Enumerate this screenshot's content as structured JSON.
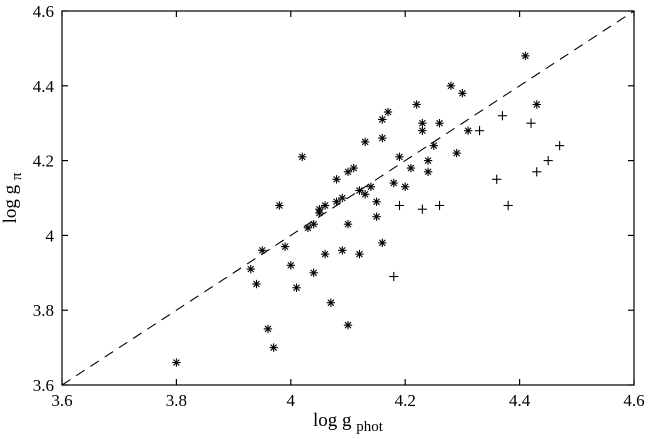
{
  "figure": {
    "background": "#ffffff"
  },
  "chart_data": {
    "type": "scatter",
    "title": "",
    "xlabel": "log g_phot",
    "ylabel": "log g_π",
    "xlabel_parts": {
      "prefix": "log g",
      "sub": "phot"
    },
    "ylabel_parts": {
      "prefix": "log g",
      "sub": "π"
    },
    "xlim": [
      3.6,
      4.6
    ],
    "ylim": [
      3.6,
      4.6
    ],
    "xticks": [
      3.6,
      3.8,
      4.0,
      4.2,
      4.4,
      4.6
    ],
    "xtick_labels": [
      "3.6",
      "3.8",
      "4",
      "4.2",
      "4.4",
      "4.6"
    ],
    "yticks": [
      3.6,
      3.8,
      4.0,
      4.2,
      4.4,
      4.6
    ],
    "ytick_labels": [
      "3.6",
      "3.8",
      "4",
      "4.2",
      "4.4",
      "4.6"
    ],
    "grid": false,
    "legend": null,
    "axis_color": "#000000",
    "marker_color": "#000000",
    "line_color": "#000000",
    "reference_line": {
      "type": "identity",
      "style": "dashed",
      "from": [
        3.6,
        3.6
      ],
      "to": [
        4.6,
        4.6
      ]
    },
    "series": [
      {
        "name": "asterisk-sample",
        "marker": "asterisk",
        "points": [
          [
            3.8,
            3.66
          ],
          [
            3.93,
            3.91
          ],
          [
            3.94,
            3.87
          ],
          [
            3.95,
            3.96
          ],
          [
            3.96,
            3.75
          ],
          [
            3.97,
            3.7
          ],
          [
            3.98,
            4.08
          ],
          [
            3.99,
            3.97
          ],
          [
            4.0,
            3.92
          ],
          [
            4.01,
            3.86
          ],
          [
            4.02,
            4.21
          ],
          [
            4.03,
            4.02
          ],
          [
            4.04,
            4.03
          ],
          [
            4.04,
            3.9
          ],
          [
            4.05,
            4.06
          ],
          [
            4.05,
            4.07
          ],
          [
            4.06,
            4.08
          ],
          [
            4.06,
            3.95
          ],
          [
            4.07,
            3.82
          ],
          [
            4.08,
            4.09
          ],
          [
            4.08,
            4.15
          ],
          [
            4.09,
            4.1
          ],
          [
            4.09,
            3.96
          ],
          [
            4.1,
            4.17
          ],
          [
            4.1,
            4.03
          ],
          [
            4.1,
            3.76
          ],
          [
            4.11,
            4.18
          ],
          [
            4.12,
            4.12
          ],
          [
            4.12,
            3.95
          ],
          [
            4.13,
            4.11
          ],
          [
            4.13,
            4.25
          ],
          [
            4.14,
            4.13
          ],
          [
            4.15,
            4.09
          ],
          [
            4.15,
            4.05
          ],
          [
            4.16,
            3.98
          ],
          [
            4.16,
            4.26
          ],
          [
            4.16,
            4.31
          ],
          [
            4.17,
            4.33
          ],
          [
            4.18,
            4.14
          ],
          [
            4.19,
            4.21
          ],
          [
            4.2,
            4.13
          ],
          [
            4.21,
            4.18
          ],
          [
            4.22,
            4.35
          ],
          [
            4.23,
            4.3
          ],
          [
            4.23,
            4.28
          ],
          [
            4.24,
            4.2
          ],
          [
            4.24,
            4.17
          ],
          [
            4.25,
            4.24
          ],
          [
            4.26,
            4.3
          ],
          [
            4.28,
            4.4
          ],
          [
            4.29,
            4.22
          ],
          [
            4.3,
            4.38
          ],
          [
            4.31,
            4.28
          ],
          [
            4.41,
            4.48
          ],
          [
            4.43,
            4.35
          ]
        ]
      },
      {
        "name": "plus-sample",
        "marker": "plus",
        "points": [
          [
            4.18,
            3.89
          ],
          [
            4.19,
            4.08
          ],
          [
            4.23,
            4.07
          ],
          [
            4.26,
            4.08
          ],
          [
            4.33,
            4.28
          ],
          [
            4.36,
            4.15
          ],
          [
            4.37,
            4.32
          ],
          [
            4.38,
            4.08
          ],
          [
            4.42,
            4.3
          ],
          [
            4.43,
            4.17
          ],
          [
            4.45,
            4.2
          ],
          [
            4.47,
            4.24
          ]
        ]
      }
    ]
  }
}
